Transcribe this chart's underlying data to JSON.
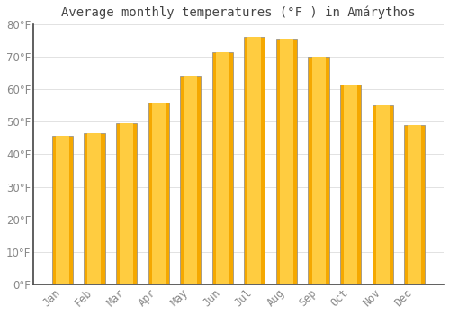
{
  "title": "Average monthly temperatures (°F ) in Amárythos",
  "months": [
    "Jan",
    "Feb",
    "Mar",
    "Apr",
    "May",
    "Jun",
    "Jul",
    "Aug",
    "Sep",
    "Oct",
    "Nov",
    "Dec"
  ],
  "values": [
    45.5,
    46.5,
    49.5,
    56,
    64,
    71.5,
    76,
    75.5,
    70,
    61.5,
    55,
    49
  ],
  "bar_color_outer": "#F5A800",
  "bar_color_inner": "#FFCC40",
  "bar_edge_color": "#888888",
  "background_color": "#FFFFFF",
  "plot_bg_color": "#FFFFFF",
  "grid_color": "#DDDDDD",
  "tick_label_color": "#888888",
  "title_color": "#444444",
  "spine_color": "#444444",
  "ylim": [
    0,
    80
  ],
  "yticks": [
    0,
    10,
    20,
    30,
    40,
    50,
    60,
    70,
    80
  ],
  "title_fontsize": 10,
  "tick_fontsize": 8.5,
  "bar_width": 0.65
}
